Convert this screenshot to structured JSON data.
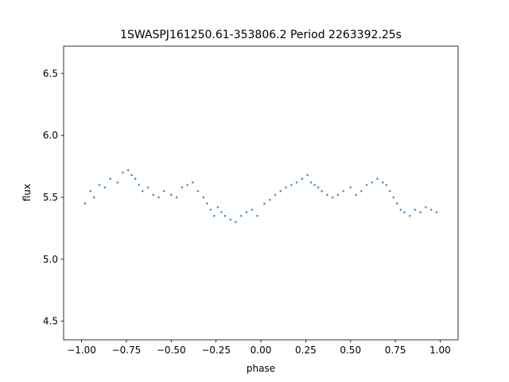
{
  "chart_data": {
    "type": "scatter",
    "title": "1SWASPJ161250.61-353806.2 Period 2263392.25s",
    "xlabel": "phase",
    "ylabel": "flux",
    "xlim": [
      -1.1,
      1.1
    ],
    "ylim": [
      4.35,
      6.72
    ],
    "x_ticks": [
      -1.0,
      -0.75,
      -0.5,
      -0.25,
      0.0,
      0.25,
      0.5,
      0.75,
      1.0
    ],
    "x_tick_labels": [
      "−1.00",
      "−0.75",
      "−0.50",
      "−0.25",
      "0.00",
      "0.25",
      "0.50",
      "0.75",
      "1.00"
    ],
    "y_ticks": [
      4.5,
      5.0,
      5.5,
      6.0,
      6.5
    ],
    "y_tick_labels": [
      "4.5",
      "5.0",
      "5.5",
      "6.0",
      "6.5"
    ],
    "grid": false,
    "marker_color": "#1f77b4",
    "series": [
      {
        "x": [
          -0.98,
          -0.95,
          -0.93,
          -0.9,
          -0.87,
          -0.84,
          -0.8,
          -0.77,
          -0.74,
          -0.72,
          -0.7,
          -0.68,
          -0.66,
          -0.63,
          -0.6,
          -0.57,
          -0.54,
          -0.5,
          -0.47,
          -0.44,
          -0.41,
          -0.38,
          -0.35,
          -0.32,
          -0.3,
          -0.28,
          -0.26,
          -0.24,
          -0.22,
          -0.2,
          -0.17,
          -0.14,
          -0.11,
          -0.08,
          -0.05,
          -0.02,
          0.02,
          0.05,
          0.08,
          0.11,
          0.14,
          0.17,
          0.2,
          0.23,
          0.26,
          0.28,
          0.3,
          0.32,
          0.34,
          0.37,
          0.4,
          0.43,
          0.46,
          0.5,
          0.53,
          0.56,
          0.59,
          0.62,
          0.65,
          0.68,
          0.7,
          0.72,
          0.74,
          0.76,
          0.78,
          0.8,
          0.83,
          0.86,
          0.89,
          0.92,
          0.95,
          0.98
        ],
        "y": [
          5.45,
          5.55,
          5.5,
          5.6,
          5.58,
          5.65,
          5.62,
          5.7,
          5.72,
          5.68,
          5.65,
          5.6,
          5.55,
          5.58,
          5.52,
          5.5,
          5.55,
          5.52,
          5.5,
          5.58,
          5.6,
          5.62,
          5.55,
          5.5,
          5.45,
          5.4,
          5.35,
          5.42,
          5.38,
          5.35,
          5.32,
          5.3,
          5.35,
          5.38,
          5.4,
          5.35,
          5.45,
          5.48,
          5.52,
          5.55,
          5.58,
          5.6,
          5.62,
          5.65,
          5.68,
          5.62,
          5.6,
          5.58,
          5.55,
          5.52,
          5.5,
          5.52,
          5.55,
          5.58,
          5.52,
          5.55,
          5.6,
          5.62,
          5.65,
          5.62,
          5.6,
          5.55,
          5.5,
          5.45,
          5.4,
          5.38,
          5.35,
          5.4,
          5.38,
          5.42,
          5.4,
          5.38
        ]
      }
    ]
  }
}
